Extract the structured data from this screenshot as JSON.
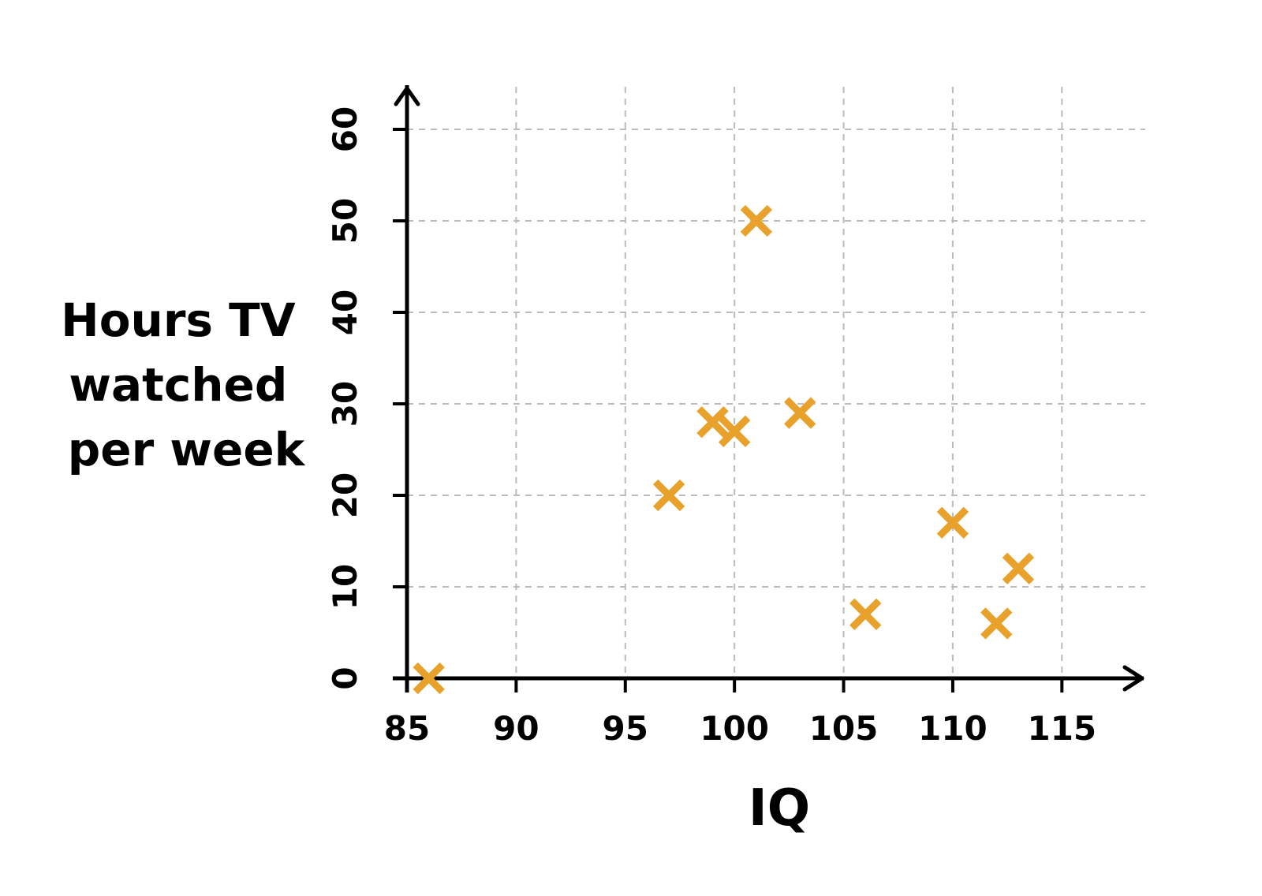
{
  "chart_data": {
    "type": "scatter",
    "xlabel": "IQ",
    "ylabel_lines": [
      "Hours TV",
      "watched",
      "per week"
    ],
    "xlim": [
      85,
      118
    ],
    "ylim": [
      0,
      65
    ],
    "x_ticks": [
      85,
      90,
      95,
      100,
      105,
      110,
      115
    ],
    "y_ticks": [
      0,
      10,
      20,
      30,
      40,
      50,
      60
    ],
    "grid": true,
    "marker": "x",
    "marker_color": "#E8A22C",
    "points": [
      {
        "x": 86,
        "y": 0
      },
      {
        "x": 97,
        "y": 20
      },
      {
        "x": 99,
        "y": 28
      },
      {
        "x": 100,
        "y": 27
      },
      {
        "x": 101,
        "y": 50
      },
      {
        "x": 103,
        "y": 29
      },
      {
        "x": 106,
        "y": 7
      },
      {
        "x": 110,
        "y": 17
      },
      {
        "x": 112,
        "y": 6
      },
      {
        "x": 113,
        "y": 12
      }
    ]
  }
}
